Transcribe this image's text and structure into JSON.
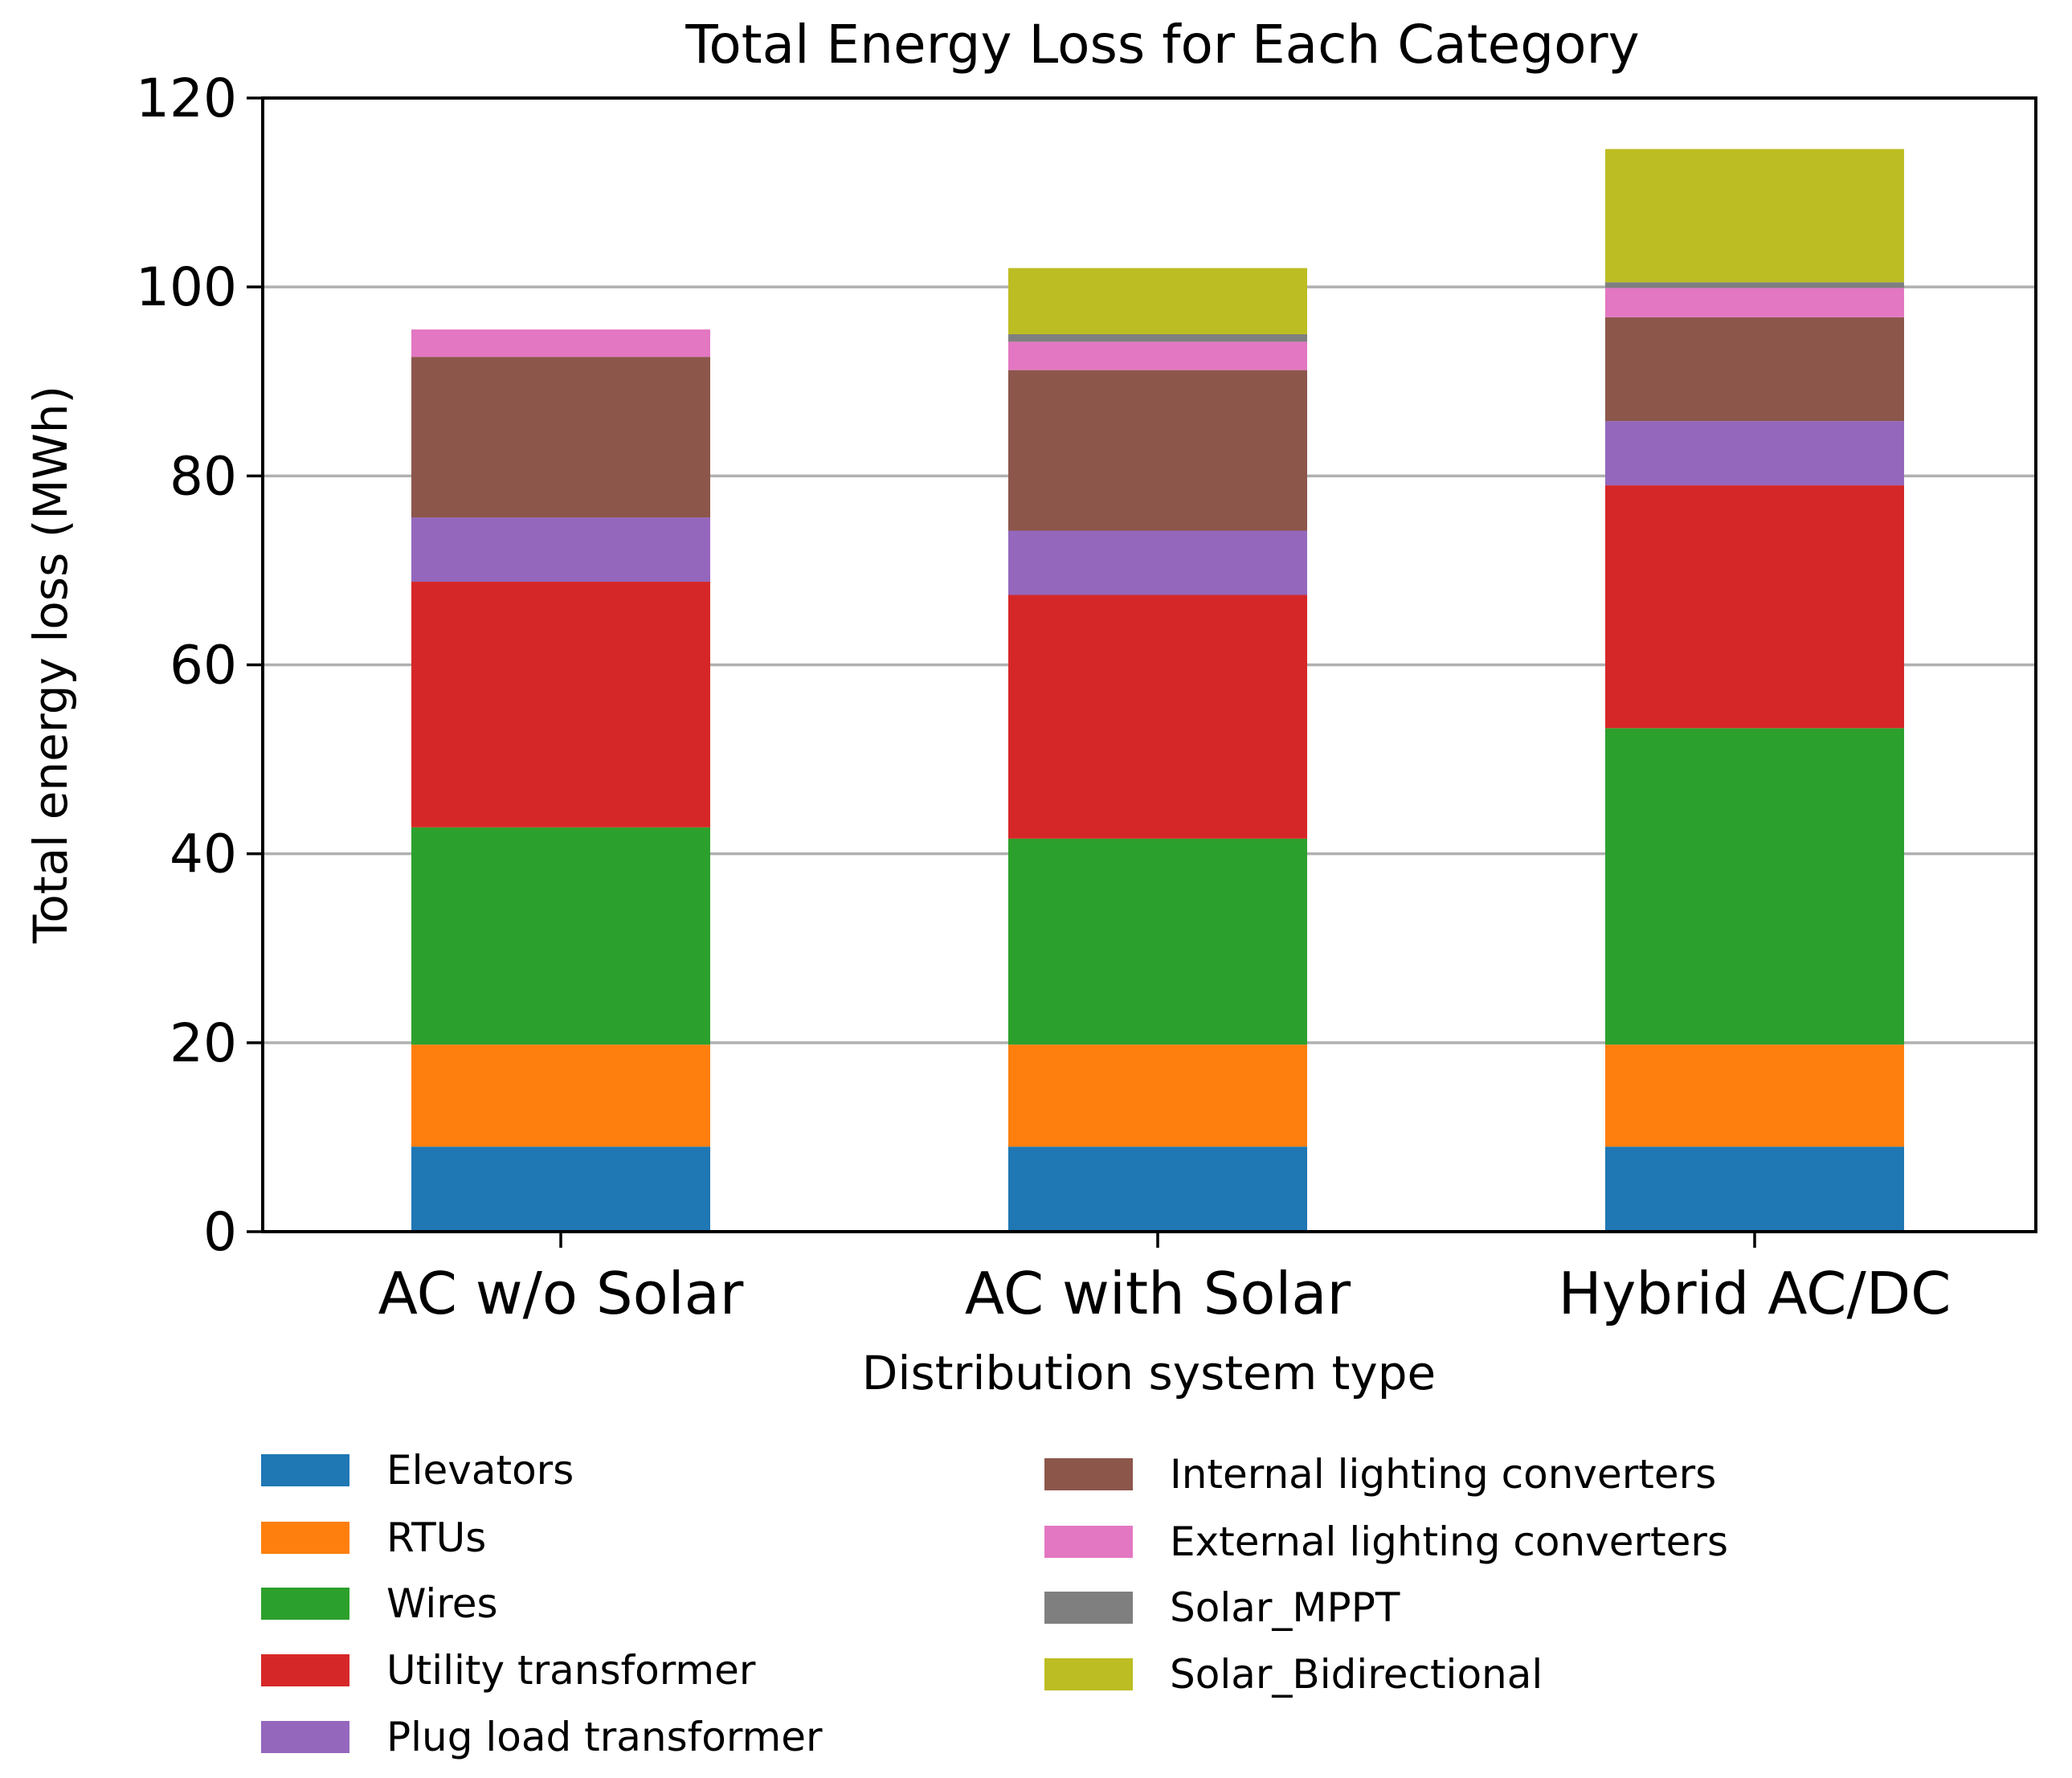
{
  "chart_data": {
    "type": "bar",
    "stacked": true,
    "title": "Total Energy Loss for Each Category",
    "xlabel": "Distribution system type",
    "ylabel": "Total energy loss (MWh)",
    "ylim": [
      0,
      120
    ],
    "yticks": [
      0,
      20,
      40,
      60,
      80,
      100,
      120
    ],
    "grid": "y",
    "legend_position": "bottom",
    "categories": [
      "AC w/o Solar",
      "AC with Solar",
      "Hybrid AC/DC"
    ],
    "series": [
      {
        "name": "Elevators",
        "color": "#1f77b4",
        "values": [
          9.0,
          9.0,
          9.0
        ]
      },
      {
        "name": "RTUs",
        "color": "#ff7f0e",
        "values": [
          10.8,
          10.8,
          10.8
        ]
      },
      {
        "name": "Wires",
        "color": "#2ca02c",
        "values": [
          23.0,
          21.8,
          33.5
        ]
      },
      {
        "name": "Utility transformer",
        "color": "#d62728",
        "values": [
          26.0,
          25.8,
          25.7
        ]
      },
      {
        "name": "Plug load transformer",
        "color": "#9467bd",
        "values": [
          6.8,
          6.8,
          6.8
        ]
      },
      {
        "name": "Internal lighting converters",
        "color": "#8c564b",
        "values": [
          17.0,
          17.0,
          11.0
        ]
      },
      {
        "name": "External lighting converters",
        "color": "#e377c2",
        "values": [
          2.9,
          3.0,
          3.1
        ]
      },
      {
        "name": "Solar_MPPT",
        "color": "#7f7f7f",
        "values": [
          0.0,
          0.8,
          0.6
        ]
      },
      {
        "name": "Solar_Bidirectional",
        "color": "#bcbd22",
        "values": [
          0.0,
          7.0,
          14.1
        ]
      }
    ]
  }
}
